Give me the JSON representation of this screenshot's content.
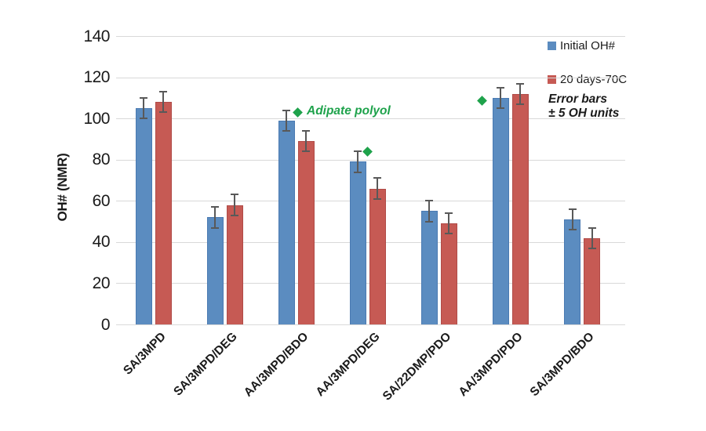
{
  "chart_data": {
    "type": "bar",
    "title": "",
    "xlabel": "",
    "ylabel": "OH# (NMR)",
    "ylim": [
      0,
      140
    ],
    "yticks": [
      0,
      20,
      40,
      60,
      80,
      100,
      120,
      140
    ],
    "grid": true,
    "legend_position": "top-right",
    "categories": [
      "SA/3MPD",
      "SA/3MPD/DEG",
      "AA/3MPD/BDO",
      "AA/3MPD/DEG",
      "SA/22DMP/PDO",
      "AA/3MPD/PDO",
      "SA/3MPD/BDO"
    ],
    "series": [
      {
        "name": "Initial OH#",
        "color": "#5b8cc0",
        "border_color": "#4a7ab2",
        "values": [
          105,
          52,
          99,
          79,
          55,
          110,
          51
        ]
      },
      {
        "name": "20 days-70C",
        "color": "#c65a54",
        "border_color": "#b04b47",
        "values": [
          108,
          58,
          89,
          66,
          49,
          112,
          42
        ]
      }
    ],
    "error_bar_units": 5,
    "note_line1": "Error bars",
    "note_line2": "± 5 OH units",
    "annotations": [
      {
        "marker": "diamond",
        "color": "#1ea24b",
        "category": "AA/3MPD/BDO",
        "value": 103,
        "dx": 2,
        "label": "Adipate polyol"
      },
      {
        "marker": "diamond",
        "color": "#1ea24b",
        "category": "AA/3MPD/DEG",
        "value": 84,
        "dx": 0,
        "label": ""
      },
      {
        "marker": "diamond",
        "color": "#1ea24b",
        "category": "AA/3MPD/PDO",
        "value": 108.5,
        "dx": -36,
        "label": ""
      }
    ]
  },
  "colors": {
    "gridline": "#d9d9d9",
    "error_bar": "#595959",
    "annotation_green": "#1ea24b",
    "text": "#1a1a1a"
  }
}
